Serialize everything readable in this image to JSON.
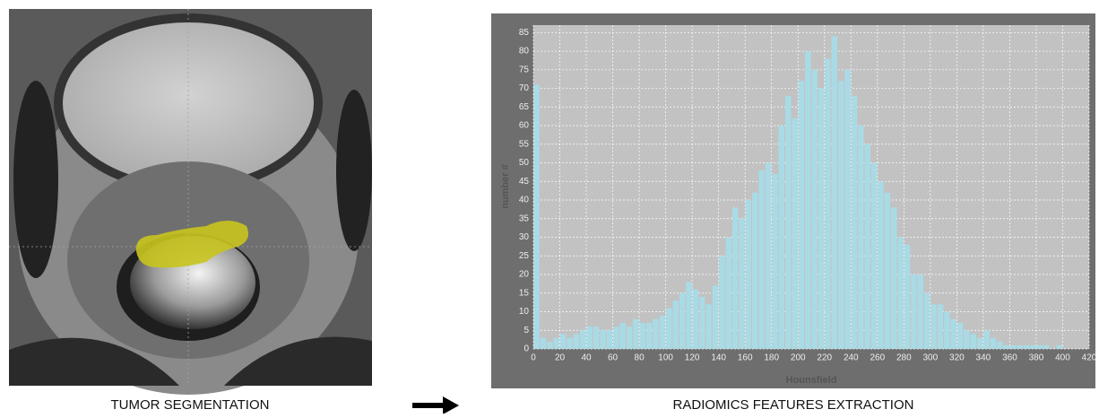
{
  "chart_data": {
    "type": "histogram",
    "left_caption": "TUMOR SEGMENTATION",
    "right_caption": "RADIOMICS FEATURES EXTRACTION",
    "xlabel": "Hounsfield",
    "ylabel": "number #",
    "color": "#a9dbe6",
    "grid": true,
    "bins": [
      0,
      5,
      10,
      15,
      20,
      25,
      30,
      35,
      40,
      45,
      50,
      55,
      60,
      65,
      70,
      75,
      80,
      85,
      90,
      95,
      100,
      105,
      110,
      115,
      120,
      125,
      130,
      135,
      140,
      145,
      150,
      155,
      160,
      165,
      170,
      175,
      180,
      185,
      190,
      195,
      200,
      205,
      210,
      215,
      220,
      225,
      230,
      235,
      240,
      245,
      250,
      255,
      260,
      265,
      270,
      275,
      280,
      285,
      290,
      295,
      300,
      305,
      310,
      315,
      320,
      325,
      330,
      335,
      340,
      345,
      350,
      355,
      360,
      365,
      370,
      375,
      380,
      385,
      390,
      395,
      400,
      405
    ],
    "values": [
      71,
      3,
      2,
      3,
      4,
      3,
      4,
      5,
      6,
      6,
      5,
      5,
      6,
      7,
      6,
      8,
      7,
      7,
      8,
      9,
      11,
      13,
      15,
      18,
      16,
      14,
      12,
      17,
      25,
      30,
      38,
      35,
      40,
      42,
      48,
      50,
      47,
      60,
      68,
      62,
      72,
      80,
      75,
      70,
      78,
      84,
      72,
      75,
      68,
      60,
      55,
      50,
      45,
      42,
      38,
      30,
      28,
      20,
      20,
      15,
      12,
      12,
      10,
      8,
      7,
      5,
      4,
      3,
      5,
      3,
      2,
      1,
      1,
      1,
      1,
      1,
      1,
      1,
      0,
      1,
      0
    ],
    "xlim": [
      0,
      420
    ],
    "xticks": [
      0,
      20,
      40,
      60,
      80,
      100,
      120,
      140,
      160,
      180,
      200,
      220,
      240,
      260,
      280,
      300,
      320,
      340,
      360,
      380,
      400,
      420
    ],
    "ylim": [
      0,
      87
    ],
    "yticks": [
      0,
      5,
      10,
      15,
      20,
      25,
      30,
      35,
      40,
      45,
      50,
      55,
      60,
      65,
      70,
      75,
      80,
      85
    ]
  }
}
